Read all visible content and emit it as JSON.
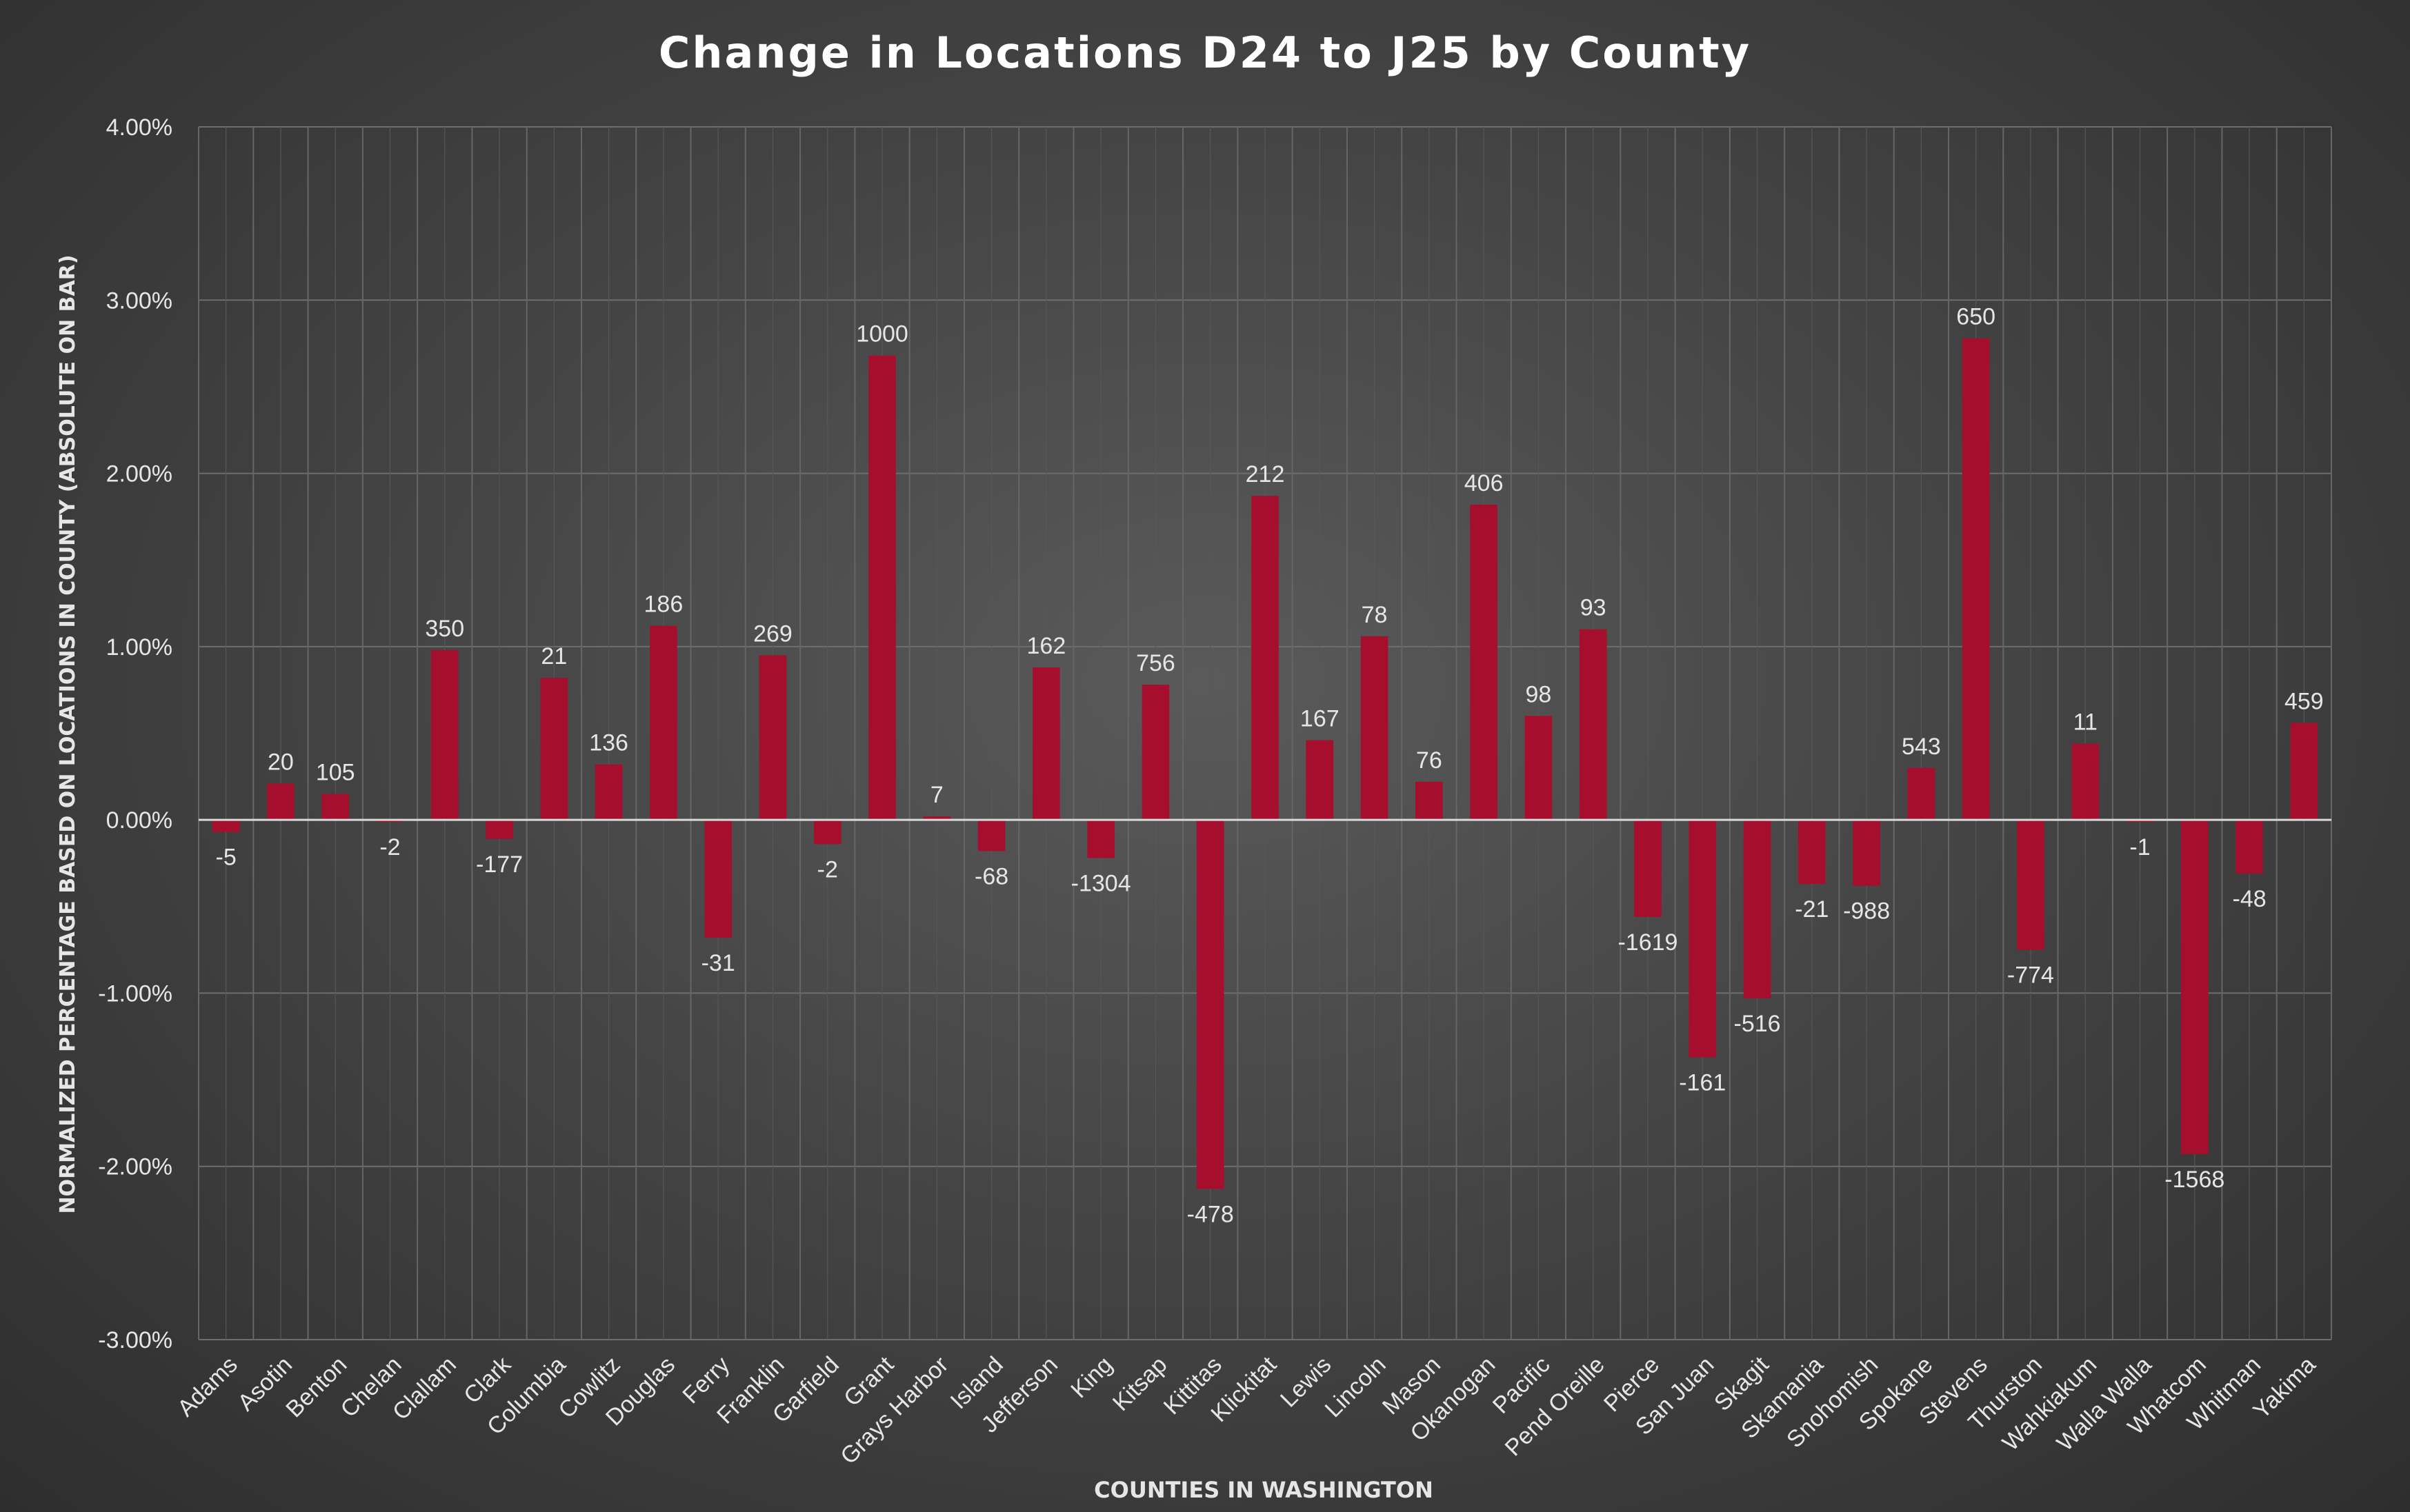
{
  "chart_data": {
    "type": "bar",
    "title": "Change in Locations D24 to J25 by County",
    "xlabel": "COUNTIES IN WASHINGTON",
    "ylabel": "NORMALIZED PERCENTAGE BASED ON LOCATIONS IN COUNTY (ABSOLUTE ON BAR)",
    "ylim": [
      -3.0,
      4.0
    ],
    "yticks": [
      "-3.00%",
      "-2.00%",
      "-1.00%",
      "0.00%",
      "1.00%",
      "2.00%",
      "3.00%",
      "4.00%"
    ],
    "ytick_values": [
      -3,
      -2,
      -1,
      0,
      1,
      2,
      3,
      4
    ],
    "grid": true,
    "bar_color": "#a50f2d",
    "categories": [
      "Adams",
      "Asotin",
      "Benton",
      "Chelan",
      "Clallam",
      "Clark",
      "Columbia",
      "Cowlitz",
      "Douglas",
      "Ferry",
      "Franklin",
      "Garfield",
      "Grant",
      "Grays Harbor",
      "Island",
      "Jefferson",
      "King",
      "Kitsap",
      "Kittitas",
      "Klickitat",
      "Lewis",
      "Lincoln",
      "Mason",
      "Okanogan",
      "Pacific",
      "Pend Oreille",
      "Pierce",
      "San Juan",
      "Skagit",
      "Skamania",
      "Snohomish",
      "Spokane",
      "Stevens",
      "Thurston",
      "Wahkiakum",
      "Walla Walla",
      "Whatcom",
      "Whitman",
      "Yakima"
    ],
    "values": [
      -0.07,
      0.21,
      0.15,
      -0.01,
      0.98,
      -0.11,
      0.82,
      0.32,
      1.12,
      -0.68,
      0.95,
      -0.14,
      2.68,
      0.02,
      -0.18,
      0.88,
      -0.22,
      0.78,
      -2.13,
      1.87,
      0.46,
      1.06,
      0.22,
      1.82,
      0.6,
      1.1,
      -0.56,
      -1.37,
      -1.03,
      -0.37,
      -0.38,
      0.3,
      2.78,
      -0.75,
      0.44,
      -0.01,
      -1.93,
      -0.31,
      0.56
    ],
    "labels": [
      "-5",
      "20",
      "105",
      "-2",
      "350",
      "-177",
      "21",
      "136",
      "186",
      "-31",
      "269",
      "-2",
      "1000",
      "7",
      "-68",
      "162",
      "-1304",
      "756",
      "-478",
      "212",
      "167",
      "78",
      "76",
      "406",
      "98",
      "93",
      "-1619",
      "-161",
      "-516",
      "-21",
      "-988",
      "543",
      "650",
      "-774",
      "11",
      "-1",
      "-1568",
      "-48",
      "459"
    ]
  }
}
